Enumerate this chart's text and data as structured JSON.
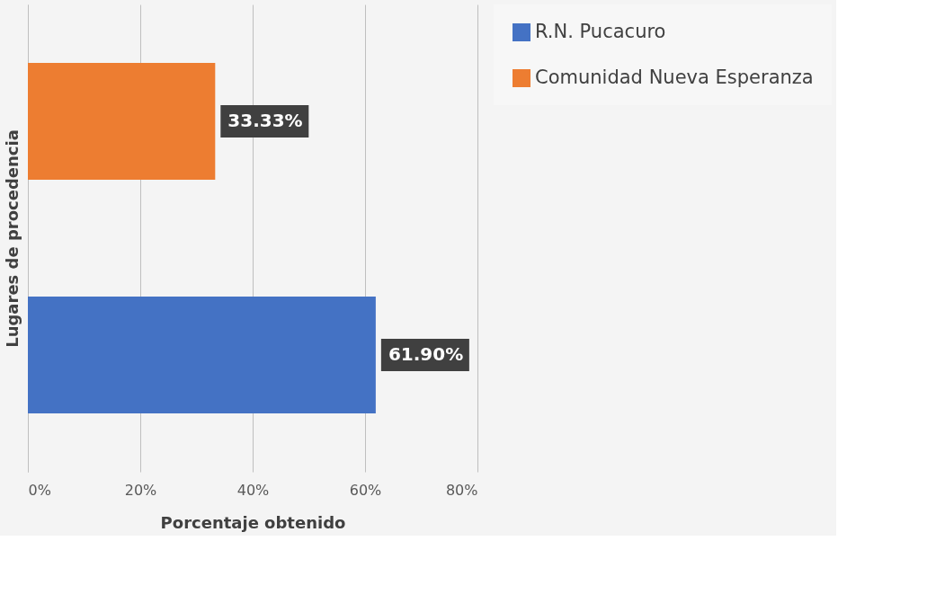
{
  "chart_data": {
    "type": "bar",
    "orientation": "horizontal",
    "xlabel": "Porcentaje obtenido",
    "ylabel": "Lugares de procedencia",
    "categories": [
      null,
      null
    ],
    "series": [
      {
        "name": "R.N. Pucacuro",
        "color": "#4472c4",
        "values": [
          null,
          61.9
        ],
        "value_labels": [
          null,
          "61.90%"
        ]
      },
      {
        "name": "Comunidad Nueva Esperanza",
        "color": "#ed7d31",
        "values": [
          33.33,
          null
        ],
        "value_labels": [
          "33.33%",
          null
        ]
      }
    ],
    "xlim": [
      0,
      80
    ],
    "xticks": [
      {
        "value": 0,
        "label": "0%"
      },
      {
        "value": 20,
        "label": "20%"
      },
      {
        "value": 40,
        "label": "40%"
      },
      {
        "value": 60,
        "label": "60%"
      },
      {
        "value": 80,
        "label": "80%"
      }
    ],
    "grid": "x",
    "legend": "right"
  }
}
